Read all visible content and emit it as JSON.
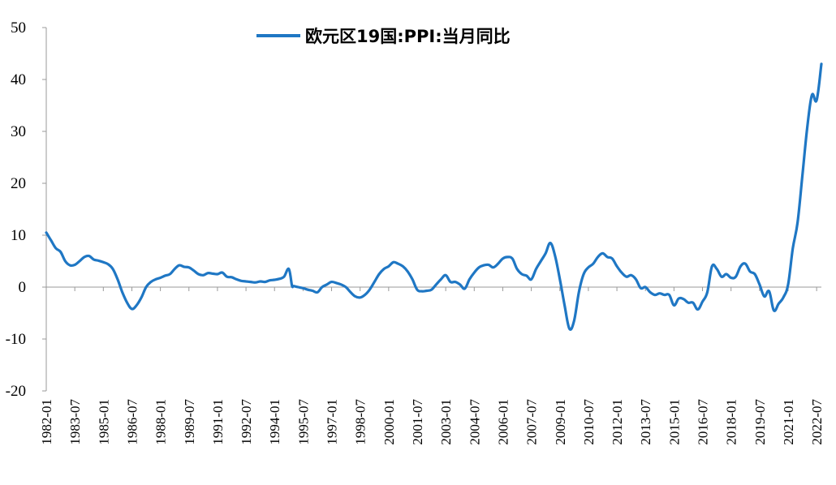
{
  "chart_data": {
    "type": "line",
    "title": "",
    "xlabel": "",
    "ylabel": "",
    "ylim": [
      -20,
      50
    ],
    "yticks": [
      -20,
      -10,
      0,
      10,
      20,
      30,
      40,
      50
    ],
    "grid": false,
    "legend_position": "top-center",
    "color": "#1f77c4",
    "x_tick_labels": [
      "1982-01",
      "1983-07",
      "1985-01",
      "1986-07",
      "1988-01",
      "1989-07",
      "1991-01",
      "1992-07",
      "1994-01",
      "1995-07",
      "1997-01",
      "1998-07",
      "2000-01",
      "2001-07",
      "2003-01",
      "2004-07",
      "2006-01",
      "2007-07",
      "2009-01",
      "2010-07",
      "2012-01",
      "2013-07",
      "2015-01",
      "2016-07",
      "2018-01",
      "2019-07",
      "2021-01",
      "2022-07"
    ],
    "x_range": [
      "1982-01",
      "2022-10"
    ],
    "series": [
      {
        "name": "欧元区19国:PPI:当月同比",
        "points": [
          [
            "1982-01",
            10.5
          ],
          [
            "1982-04",
            9.0
          ],
          [
            "1982-07",
            7.5
          ],
          [
            "1982-10",
            6.8
          ],
          [
            "1983-01",
            5.0
          ],
          [
            "1983-04",
            4.2
          ],
          [
            "1983-07",
            4.3
          ],
          [
            "1983-10",
            5.0
          ],
          [
            "1984-01",
            5.8
          ],
          [
            "1984-04",
            6.0
          ],
          [
            "1984-07",
            5.3
          ],
          [
            "1984-10",
            5.1
          ],
          [
            "1985-01",
            4.8
          ],
          [
            "1985-04",
            4.4
          ],
          [
            "1985-07",
            3.5
          ],
          [
            "1985-10",
            1.5
          ],
          [
            "1986-01",
            -1.0
          ],
          [
            "1986-04",
            -3.0
          ],
          [
            "1986-07",
            -4.2
          ],
          [
            "1986-10",
            -3.5
          ],
          [
            "1987-01",
            -2.0
          ],
          [
            "1987-04",
            0.0
          ],
          [
            "1987-07",
            1.0
          ],
          [
            "1987-10",
            1.5
          ],
          [
            "1988-01",
            1.8
          ],
          [
            "1988-04",
            2.2
          ],
          [
            "1988-07",
            2.5
          ],
          [
            "1988-10",
            3.5
          ],
          [
            "1989-01",
            4.2
          ],
          [
            "1989-04",
            3.9
          ],
          [
            "1989-07",
            3.8
          ],
          [
            "1989-10",
            3.2
          ],
          [
            "1990-01",
            2.5
          ],
          [
            "1990-04",
            2.3
          ],
          [
            "1990-07",
            2.7
          ],
          [
            "1990-10",
            2.6
          ],
          [
            "1991-01",
            2.5
          ],
          [
            "1991-04",
            2.8
          ],
          [
            "1991-07",
            2.0
          ],
          [
            "1991-10",
            1.9
          ],
          [
            "1992-01",
            1.5
          ],
          [
            "1992-04",
            1.2
          ],
          [
            "1992-07",
            1.1
          ],
          [
            "1992-10",
            1.0
          ],
          [
            "1993-01",
            0.9
          ],
          [
            "1993-04",
            1.1
          ],
          [
            "1993-07",
            1.0
          ],
          [
            "1993-10",
            1.3
          ],
          [
            "1994-01",
            1.4
          ],
          [
            "1994-04",
            1.6
          ],
          [
            "1994-07",
            2.0
          ],
          [
            "1994-10",
            3.5
          ],
          [
            "1994-12",
            0.3
          ],
          [
            "1995-01",
            0.2
          ],
          [
            "1995-04",
            0.0
          ],
          [
            "1995-07",
            -0.2
          ],
          [
            "1995-10",
            -0.5
          ],
          [
            "1996-01",
            -0.7
          ],
          [
            "1996-04",
            -1.0
          ],
          [
            "1996-07",
            0.0
          ],
          [
            "1996-10",
            0.5
          ],
          [
            "1997-01",
            1.0
          ],
          [
            "1997-04",
            0.8
          ],
          [
            "1997-07",
            0.5
          ],
          [
            "1997-10",
            0.0
          ],
          [
            "1998-01",
            -1.0
          ],
          [
            "1998-04",
            -1.8
          ],
          [
            "1998-07",
            -2.0
          ],
          [
            "1998-10",
            -1.5
          ],
          [
            "1999-01",
            -0.5
          ],
          [
            "1999-04",
            1.0
          ],
          [
            "1999-07",
            2.5
          ],
          [
            "1999-10",
            3.5
          ],
          [
            "2000-01",
            4.0
          ],
          [
            "2000-04",
            4.8
          ],
          [
            "2000-07",
            4.5
          ],
          [
            "2000-10",
            4.0
          ],
          [
            "2001-01",
            3.0
          ],
          [
            "2001-04",
            1.5
          ],
          [
            "2001-07",
            -0.5
          ],
          [
            "2001-10",
            -0.8
          ],
          [
            "2002-01",
            -0.7
          ],
          [
            "2002-04",
            -0.5
          ],
          [
            "2002-07",
            0.5
          ],
          [
            "2002-10",
            1.5
          ],
          [
            "2003-01",
            2.3
          ],
          [
            "2003-04",
            1.0
          ],
          [
            "2003-07",
            1.0
          ],
          [
            "2003-10",
            0.5
          ],
          [
            "2004-01",
            -0.3
          ],
          [
            "2004-04",
            1.5
          ],
          [
            "2004-07",
            2.8
          ],
          [
            "2004-10",
            3.8
          ],
          [
            "2005-01",
            4.2
          ],
          [
            "2005-04",
            4.3
          ],
          [
            "2005-07",
            3.8
          ],
          [
            "2005-10",
            4.5
          ],
          [
            "2006-01",
            5.5
          ],
          [
            "2006-04",
            5.8
          ],
          [
            "2006-07",
            5.5
          ],
          [
            "2006-10",
            3.5
          ],
          [
            "2007-01",
            2.5
          ],
          [
            "2007-04",
            2.2
          ],
          [
            "2007-07",
            1.5
          ],
          [
            "2007-10",
            3.5
          ],
          [
            "2008-01",
            5.0
          ],
          [
            "2008-04",
            6.5
          ],
          [
            "2008-07",
            8.5
          ],
          [
            "2008-10",
            6.0
          ],
          [
            "2009-01",
            1.5
          ],
          [
            "2009-04",
            -3.5
          ],
          [
            "2009-07",
            -8.0
          ],
          [
            "2009-10",
            -6.5
          ],
          [
            "2010-01",
            -1.0
          ],
          [
            "2010-04",
            2.5
          ],
          [
            "2010-07",
            3.8
          ],
          [
            "2010-10",
            4.5
          ],
          [
            "2011-01",
            5.8
          ],
          [
            "2011-04",
            6.5
          ],
          [
            "2011-07",
            5.8
          ],
          [
            "2011-10",
            5.5
          ],
          [
            "2012-01",
            4.0
          ],
          [
            "2012-04",
            2.8
          ],
          [
            "2012-07",
            2.0
          ],
          [
            "2012-10",
            2.3
          ],
          [
            "2013-01",
            1.5
          ],
          [
            "2013-04",
            -0.2
          ],
          [
            "2013-07",
            0.0
          ],
          [
            "2013-10",
            -1.0
          ],
          [
            "2014-01",
            -1.5
          ],
          [
            "2014-04",
            -1.2
          ],
          [
            "2014-07",
            -1.5
          ],
          [
            "2014-10",
            -1.5
          ],
          [
            "2015-01",
            -3.5
          ],
          [
            "2015-04",
            -2.2
          ],
          [
            "2015-07",
            -2.3
          ],
          [
            "2015-10",
            -3.0
          ],
          [
            "2016-01",
            -3.0
          ],
          [
            "2016-04",
            -4.3
          ],
          [
            "2016-07",
            -2.8
          ],
          [
            "2016-10",
            -1.0
          ],
          [
            "2017-01",
            4.0
          ],
          [
            "2017-04",
            3.5
          ],
          [
            "2017-07",
            2.0
          ],
          [
            "2017-10",
            2.5
          ],
          [
            "2018-01",
            1.8
          ],
          [
            "2018-04",
            2.0
          ],
          [
            "2018-07",
            4.0
          ],
          [
            "2018-10",
            4.5
          ],
          [
            "2019-01",
            3.0
          ],
          [
            "2019-04",
            2.5
          ],
          [
            "2019-07",
            0.5
          ],
          [
            "2019-10",
            -1.8
          ],
          [
            "2020-01",
            -0.8
          ],
          [
            "2020-04",
            -4.5
          ],
          [
            "2020-07",
            -3.2
          ],
          [
            "2020-10",
            -2.0
          ],
          [
            "2021-01",
            0.5
          ],
          [
            "2021-04",
            7.5
          ],
          [
            "2021-07",
            12.5
          ],
          [
            "2021-10",
            21.5
          ],
          [
            "2022-01",
            30.5
          ],
          [
            "2022-04",
            37.0
          ],
          [
            "2022-07",
            36.0
          ],
          [
            "2022-10",
            43.0
          ]
        ]
      }
    ]
  }
}
